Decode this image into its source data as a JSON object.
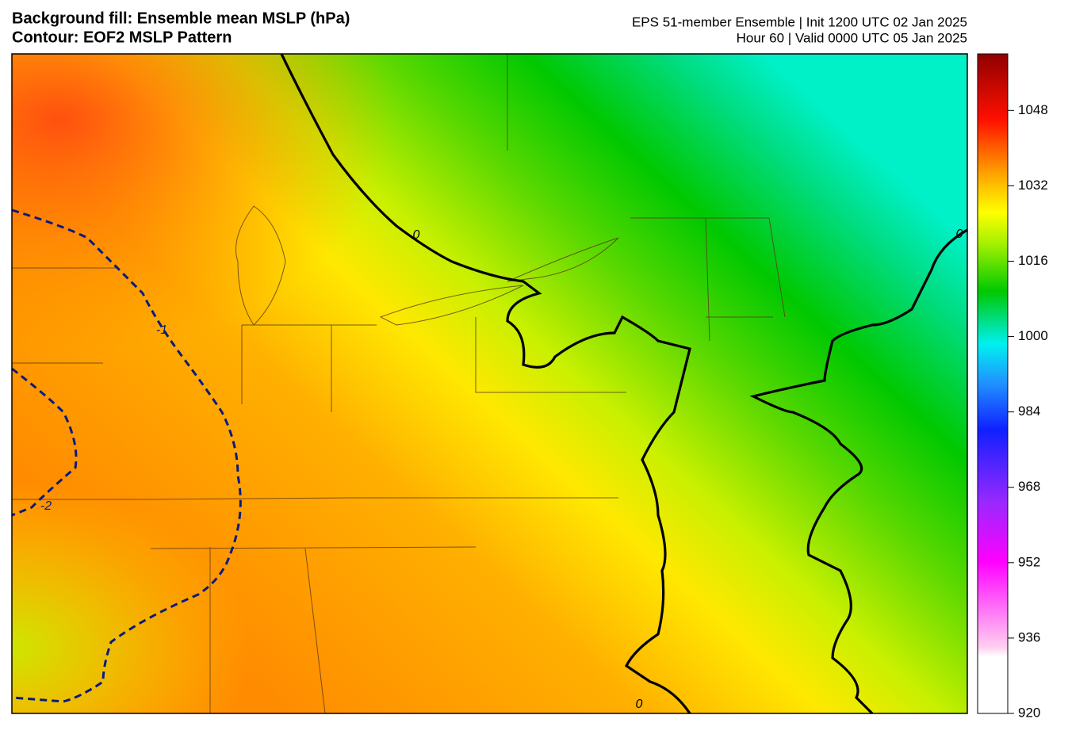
{
  "header": {
    "title_left_1": "Background fill: Ensemble mean MSLP (hPa)",
    "title_left_2": "Contour: EOF2 MSLP Pattern",
    "title_right_1": "EPS 51-member Ensemble | Init 1200 UTC 02 Jan 2025",
    "title_right_2": "Hour 60 | Valid 0000 UTC 05 Jan 2025"
  },
  "colorbar": {
    "ylim": [
      920,
      1060
    ],
    "yticks": [
      920,
      936,
      952,
      968,
      984,
      1000,
      1016,
      1032,
      1048
    ]
  },
  "contour_labels": [
    0,
    0,
    0,
    -1,
    -2
  ]
}
